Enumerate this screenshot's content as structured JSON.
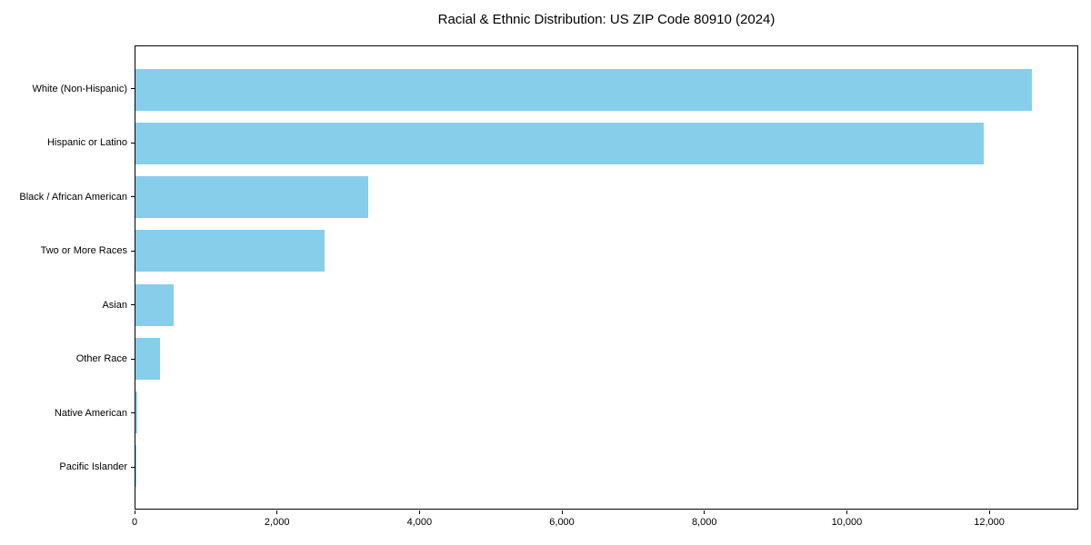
{
  "title": "Racial & Ethnic Distribution: US ZIP Code 80910 (2024)",
  "colors": {
    "bar": "#87CEEB",
    "axis": "#000000",
    "background": "#FFFFFF",
    "text": "#000000"
  },
  "chart_data": {
    "type": "bar",
    "orientation": "horizontal",
    "title": "Racial & Ethnic Distribution: US ZIP Code 80910 (2024)",
    "categories": [
      "White (Non-Hispanic)",
      "Hispanic or Latino",
      "Black / African American",
      "Two or More Races",
      "Asian",
      "Other Race",
      "Native American",
      "Pacific Islander"
    ],
    "values": [
      12610,
      11935,
      3270,
      2655,
      540,
      345,
      30,
      15
    ],
    "xlabel": "",
    "ylabel": "",
    "xlim": [
      0,
      13250
    ],
    "xticks": [
      0,
      2000,
      4000,
      6000,
      8000,
      10000,
      12000
    ],
    "xtick_labels": [
      "0",
      "2,000",
      "4,000",
      "6,000",
      "8,000",
      "10,000",
      "12,000"
    ],
    "grid": false,
    "legend": null,
    "bar_color": "#87CEEB",
    "plot_border": true
  }
}
